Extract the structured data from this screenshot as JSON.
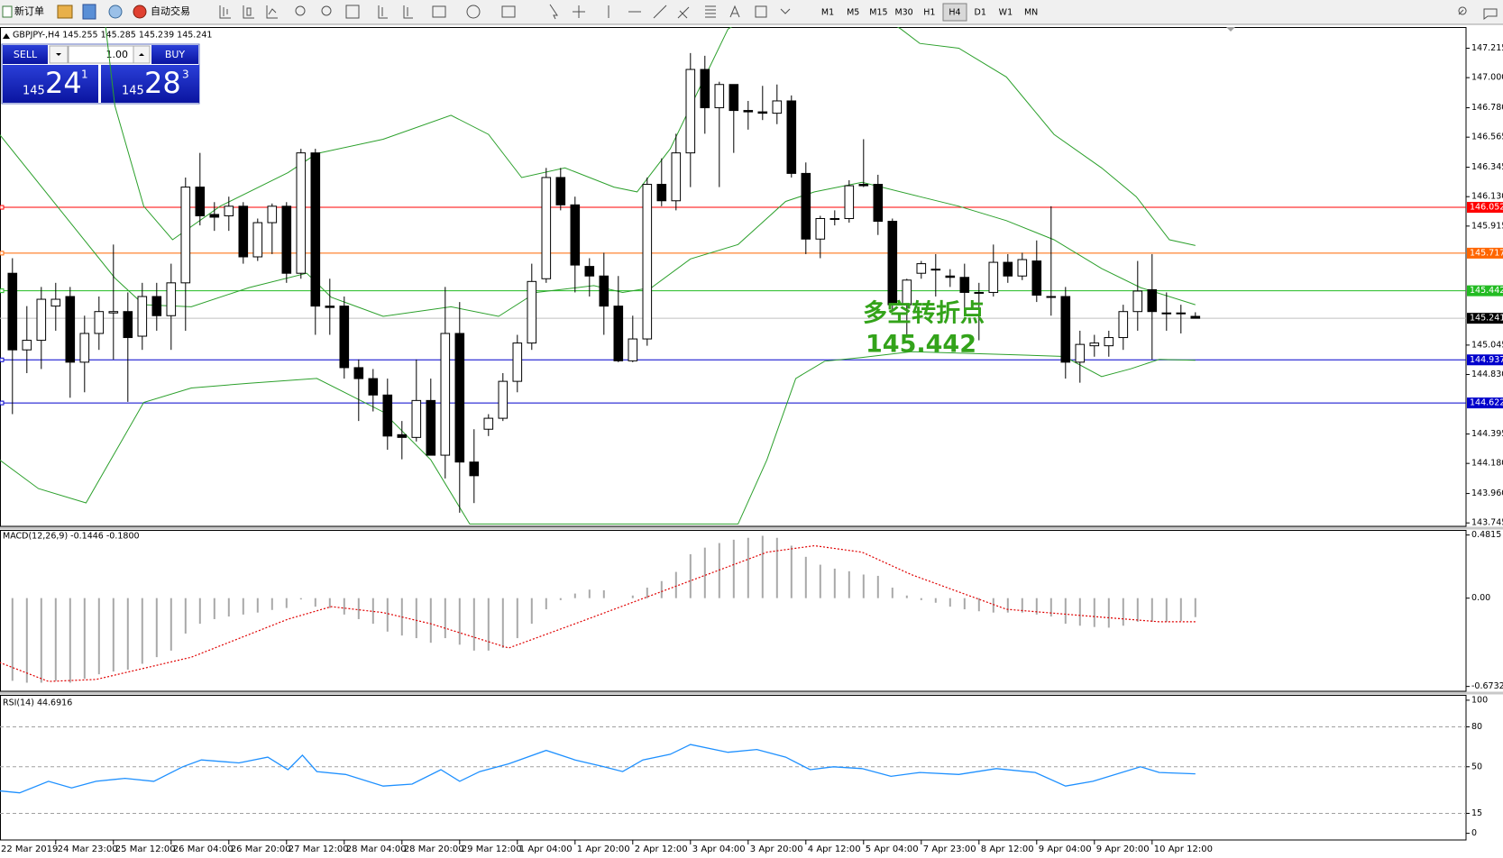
{
  "toolbar": {
    "new_order": "新订单",
    "auto_trading": "自动交易",
    "timeframes": [
      "M1",
      "M5",
      "M15",
      "M30",
      "H1",
      "H4",
      "D1",
      "W1",
      "MN"
    ],
    "active_timeframe": "H4"
  },
  "trade_panel": {
    "sell": "SELL",
    "buy": "BUY",
    "lots": "1.00",
    "sell_price": {
      "big": "145",
      "main": "24",
      "small": "1"
    },
    "buy_price": {
      "big": "145",
      "main": "28",
      "small": "3"
    }
  },
  "chart_data": [
    {
      "type": "candlestick",
      "title": "GBPJPY-,H4  145.255 145.285 145.239 145.241",
      "open": [
        145.57,
        145.01,
        145.08,
        145.33,
        145.4,
        144.92,
        145.13,
        145.28,
        145.29,
        145.11,
        145.4,
        145.26,
        145.5,
        146.2,
        146.0,
        145.99,
        146.06,
        145.69,
        145.94,
        146.06,
        145.57,
        146.45,
        145.33,
        145.33,
        144.88,
        144.8,
        144.68,
        144.39,
        144.37,
        144.64,
        144.24,
        145.13,
        144.19,
        144.43,
        144.51,
        144.78,
        145.06,
        145.53,
        146.27,
        146.07,
        145.62,
        145.55,
        145.33,
        144.93,
        145.09,
        146.22,
        146.1,
        146.45,
        147.06,
        146.78,
        146.95,
        146.76,
        146.75,
        146.74,
        146.83,
        146.3,
        145.82,
        145.97,
        145.97,
        146.22,
        146.22,
        145.95,
        145.34,
        145.57,
        145.6,
        145.55,
        145.54,
        145.43,
        145.43,
        145.65,
        145.55,
        145.66,
        145.4,
        145.4,
        144.92,
        145.04,
        145.04,
        145.1,
        145.29,
        145.45,
        145.28,
        145.28,
        145.255
      ],
      "high": [
        145.68,
        145.33,
        145.47,
        145.5,
        145.47,
        145.26,
        145.4,
        145.78,
        145.43,
        145.5,
        145.5,
        145.64,
        146.27,
        146.45,
        146.09,
        146.13,
        146.09,
        145.97,
        146.08,
        146.09,
        146.48,
        146.48,
        145.53,
        145.4,
        144.94,
        144.87,
        144.8,
        144.49,
        144.94,
        144.8,
        145.47,
        145.36,
        144.43,
        144.54,
        144.84,
        145.12,
        145.64,
        146.34,
        146.34,
        146.13,
        145.68,
        145.72,
        145.55,
        145.26,
        146.27,
        146.41,
        146.59,
        147.18,
        147.16,
        146.97,
        146.95,
        146.83,
        146.94,
        146.95,
        146.87,
        146.38,
        145.99,
        146.03,
        146.25,
        146.55,
        146.29,
        145.97,
        145.53,
        145.66,
        145.71,
        145.6,
        145.64,
        145.5,
        145.78,
        145.71,
        145.72,
        145.81,
        146.06,
        145.47,
        145.15,
        145.12,
        145.15,
        145.34,
        145.66,
        145.71,
        145.43,
        145.34,
        145.285
      ],
      "low": [
        144.54,
        144.84,
        144.87,
        145.15,
        144.66,
        144.7,
        145.01,
        144.94,
        144.63,
        145.01,
        145.15,
        145.01,
        145.15,
        145.92,
        145.88,
        145.88,
        145.64,
        145.66,
        145.71,
        145.5,
        145.53,
        145.12,
        145.12,
        144.8,
        144.49,
        144.56,
        144.28,
        144.21,
        144.34,
        144.24,
        144.07,
        143.82,
        143.89,
        144.38,
        144.49,
        144.7,
        145.01,
        145.5,
        146.03,
        145.43,
        145.4,
        145.12,
        144.92,
        144.92,
        145.04,
        146.06,
        146.03,
        146.2,
        146.59,
        146.2,
        146.45,
        146.62,
        146.69,
        146.66,
        146.27,
        145.71,
        145.68,
        145.92,
        145.94,
        146.2,
        145.85,
        145.29,
        145.12,
        145.53,
        145.4,
        145.47,
        145.26,
        145.08,
        145.4,
        145.5,
        145.52,
        145.36,
        145.26,
        144.8,
        144.77,
        144.96,
        144.96,
        145.01,
        145.15,
        144.94,
        145.15,
        145.13,
        145.239
      ],
      "close": [
        145.01,
        145.08,
        145.38,
        145.38,
        144.92,
        145.13,
        145.29,
        145.29,
        145.1,
        145.4,
        145.26,
        145.5,
        146.2,
        145.99,
        145.98,
        146.06,
        145.69,
        145.94,
        146.06,
        145.57,
        146.45,
        145.33,
        145.32,
        144.88,
        144.8,
        144.68,
        144.38,
        144.37,
        144.64,
        144.24,
        145.13,
        144.19,
        144.09,
        144.51,
        144.78,
        145.06,
        145.51,
        146.27,
        146.07,
        145.63,
        145.55,
        145.33,
        144.93,
        145.09,
        146.22,
        146.1,
        146.45,
        147.06,
        146.78,
        146.95,
        146.76,
        146.75,
        146.74,
        146.83,
        146.3,
        145.82,
        145.97,
        145.97,
        146.21,
        146.21,
        145.95,
        145.34,
        145.52,
        145.64,
        145.6,
        145.54,
        145.43,
        145.43,
        145.65,
        145.55,
        145.67,
        145.41,
        145.4,
        144.92,
        145.05,
        145.06,
        145.1,
        145.29,
        145.44,
        145.29,
        145.28,
        145.28,
        145.241
      ],
      "up_color": "#ffffff",
      "down_color": "#000000",
      "bands": [
        {
          "color": "#2ca02c",
          "x": [
            6.4,
            7.1,
            9.1,
            11.1,
            14.4,
            19.1,
            21.1,
            25.7,
            30.4,
            33.0,
            35.3,
            38.3,
            41.7,
            43.3,
            45.6,
            48.0,
            49.6,
            52.3,
            58.9,
            61.6,
            62.9,
            65.6,
            68.9,
            72.2,
            75.5,
            77.9,
            80.2,
            82.0
          ],
          "values": [
            147.425,
            146.795,
            146.06,
            145.815,
            146.06,
            146.305,
            146.445,
            146.55,
            146.725,
            146.585,
            146.27,
            146.34,
            146.2,
            146.165,
            146.48,
            147.005,
            147.355,
            147.53,
            147.53,
            147.355,
            147.25,
            147.215,
            147.005,
            146.585,
            146.34,
            146.13,
            145.815,
            145.773
          ]
        },
        {
          "color": "#2ca02c",
          "x": [
            -0.9,
            3.1,
            7.1,
            9.1,
            12.4,
            16.4,
            20.4,
            22.1,
            25.7,
            30.4,
            33.7,
            36.3,
            40.3,
            42.3,
            44.3,
            47.0,
            50.3,
            53.6,
            55.6,
            58.9,
            62.9,
            65.6,
            68.9,
            72.2,
            75.5,
            78.2,
            82.0
          ],
          "values": [
            146.585,
            146.06,
            145.535,
            145.34,
            145.325,
            145.465,
            145.57,
            145.395,
            145.255,
            145.325,
            145.255,
            145.43,
            145.48,
            145.43,
            145.465,
            145.675,
            145.78,
            146.095,
            146.165,
            146.235,
            146.13,
            146.06,
            145.955,
            145.815,
            145.605,
            145.465,
            145.34
          ]
        },
        {
          "color": "#2ca02c",
          "x": [
            -0.9,
            1.8,
            5.1,
            9.1,
            12.4,
            16.4,
            21.1,
            25.7,
            29.0,
            31.7,
            50.3,
            52.3,
            54.3,
            56.3,
            58.9,
            62.3,
            68.9,
            72.9,
            75.5,
            77.5,
            79.5,
            82.0
          ],
          "values": [
            144.206,
            143.996,
            143.891,
            144.626,
            144.731,
            144.766,
            144.801,
            144.556,
            144.206,
            143.737,
            143.737,
            144.206,
            144.801,
            144.927,
            144.955,
            144.997,
            144.976,
            144.962,
            144.815,
            144.871,
            144.941,
            144.934
          ]
        }
      ],
      "levels": [
        {
          "value": 146.052,
          "color": "#ff0000"
        },
        {
          "value": 145.717,
          "color": "#ff6600"
        },
        {
          "value": 145.442,
          "color": "#22bb22"
        },
        {
          "value": 144.937,
          "color": "#0000cc"
        },
        {
          "value": 144.622,
          "color": "#0000cc"
        }
      ],
      "bid": {
        "value": 145.241,
        "color": "#c0c0c0",
        "label_color": "#000000"
      },
      "annotation": [
        "多空转折点",
        "145.442"
      ],
      "annotation_color": "#33a31a",
      "ylim": [
        143.72,
        147.37
      ],
      "yticks": [
        147.215,
        {
          "value": 147,
          "label": "147.000"
        },
        {
          "value": 146.78,
          "label": "146.780"
        },
        146.565,
        146.345,
        {
          "value": 146.13,
          "label": "146.130"
        },
        145.915,
        145.045,
        {
          "value": 144.83,
          "label": "144.830"
        },
        144.395,
        {
          "value": 144.18,
          "label": "144.180"
        },
        {
          "value": 143.96,
          "label": "143.960"
        },
        143.745
      ],
      "time_labels": [
        "22 Mar 2019",
        "24 Mar 23:00",
        "25 Mar 12:00",
        "26 Mar 04:00",
        "26 Mar 20:00",
        "27 Mar 12:00",
        "28 Mar 04:00",
        "28 Mar 20:00",
        "29 Mar 12:00",
        "1 Apr 04:00",
        "1 Apr 20:00",
        "2 Apr 12:00",
        "3 Apr 04:00",
        "3 Apr 20:00",
        "4 Apr 12:00",
        "5 Apr 04:00",
        "7 Apr 23:00",
        "8 Apr 12:00",
        "9 Apr 04:00",
        "9 Apr 20:00",
        "10 Apr 12:00"
      ]
    },
    {
      "type": "macd",
      "title": "MACD(12,26,9) -0.1446 -0.1800",
      "histogram": [
        -0.63,
        -0.645,
        -0.645,
        -0.63,
        -0.645,
        -0.615,
        -0.58,
        -0.56,
        -0.545,
        -0.5,
        -0.45,
        -0.4,
        -0.27,
        -0.195,
        -0.16,
        -0.14,
        -0.125,
        -0.11,
        -0.09,
        -0.075,
        -0.01,
        -0.065,
        -0.075,
        -0.125,
        -0.16,
        -0.195,
        -0.255,
        -0.285,
        -0.305,
        -0.34,
        -0.305,
        -0.355,
        -0.4,
        -0.4,
        -0.38,
        -0.305,
        -0.195,
        -0.085,
        -0.015,
        0.035,
        0.065,
        0.06,
        0,
        0.02,
        0.08,
        0.13,
        0.2,
        0.335,
        0.385,
        0.42,
        0.445,
        0.46,
        0.475,
        0.46,
        0.4,
        0.315,
        0.255,
        0.225,
        0.205,
        0.18,
        0.17,
        0.08,
        0.02,
        -0.015,
        -0.035,
        -0.065,
        -0.085,
        -0.1,
        -0.11,
        -0.11,
        -0.11,
        -0.125,
        -0.14,
        -0.195,
        -0.21,
        -0.22,
        -0.225,
        -0.21,
        -0.18,
        -0.18,
        -0.18,
        -0.175,
        -0.1446
      ],
      "hist_color": "#a8a8a8",
      "signal": {
        "color": "#e00000",
        "x": [
          -0.9,
          2.5,
          5.8,
          12.4,
          19.1,
          22.1,
          25.7,
          29.0,
          34.4,
          39.0,
          45.6,
          52.3,
          55.6,
          58.9,
          62.3,
          68.9,
          75.5,
          79.5,
          82.0
        ],
        "values": [
          -0.49,
          -0.635,
          -0.62,
          -0.45,
          -0.16,
          -0.065,
          -0.11,
          -0.195,
          -0.38,
          -0.195,
          0.075,
          0.35,
          0.4,
          0.35,
          0.18,
          -0.085,
          -0.145,
          -0.18,
          -0.18
        ]
      },
      "ylim": [
        -0.71,
        0.52
      ],
      "yticks": [
        0.4815,
        {
          "value": 0,
          "label": "0.00"
        },
        -0.6732
      ]
    },
    {
      "type": "line",
      "title": "RSI(14) 44.6916",
      "color": "#1e90ff",
      "x": [
        -0.9,
        0.5,
        2.5,
        4.1,
        5.8,
        7.8,
        9.8,
        11.8,
        13.1,
        15.7,
        17.7,
        19.1,
        20.1,
        21.1,
        23.1,
        25.7,
        27.7,
        29.7,
        31.0,
        32.4,
        34.4,
        37.0,
        39.0,
        41.0,
        42.3,
        43.7,
        45.6,
        47.0,
        49.6,
        51.6,
        53.6,
        55.3,
        56.9,
        58.9,
        60.9,
        62.9,
        65.6,
        68.2,
        70.9,
        73.0,
        74.9,
        78.2,
        79.5,
        82.0
      ],
      "values": [
        31.9,
        30.4,
        39.1,
        34.1,
        39.1,
        41.3,
        39.1,
        50,
        55.1,
        52.9,
        57.2,
        47.8,
        58.7,
        46.4,
        44.2,
        35.5,
        37.0,
        47.8,
        39.1,
        46.4,
        52.2,
        62.3,
        55.1,
        50,
        46.4,
        55.1,
        59.4,
        66.7,
        60.9,
        63.0,
        57.2,
        47.8,
        50,
        48.6,
        42.8,
        45.7,
        44.2,
        48.6,
        45.7,
        35.5,
        39.1,
        50,
        45.7,
        44.6916
      ],
      "levels": [
        80,
        50,
        15
      ],
      "ylim": [
        -5,
        104
      ],
      "yticks": [
        100,
        80,
        50,
        15,
        0
      ]
    }
  ]
}
